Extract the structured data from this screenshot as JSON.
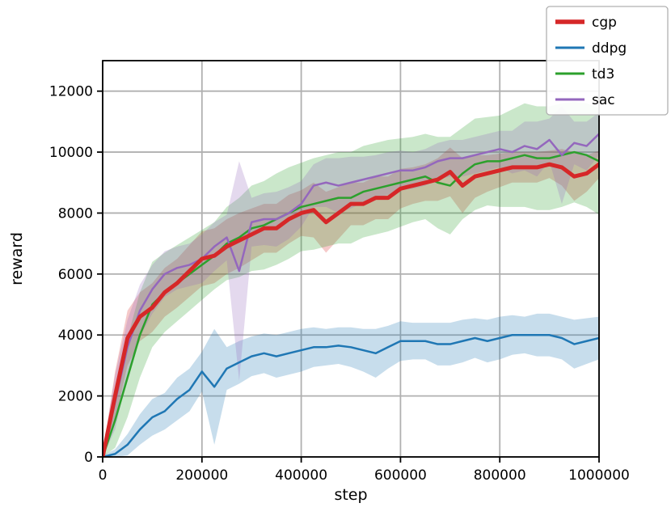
{
  "figure": {
    "background": "#ffffff"
  },
  "chart_data": {
    "type": "line",
    "title": "",
    "xlabel": "step",
    "ylabel": "reward",
    "xlim": [
      0,
      1000000
    ],
    "ylim": [
      0,
      13000
    ],
    "xticks": [
      0,
      200000,
      400000,
      600000,
      800000,
      1000000
    ],
    "xtick_labels": [
      "0",
      "200000",
      "400000",
      "600000",
      "800000",
      "1000000"
    ],
    "yticks": [
      0,
      2000,
      4000,
      6000,
      8000,
      10000,
      12000
    ],
    "ytick_labels": [
      "0",
      "2000",
      "4000",
      "6000",
      "8000",
      "10000",
      "12000"
    ],
    "grid": true,
    "grid_color": "#b0b0b0",
    "axis_color": "#000000",
    "band_opacity": 0.25,
    "legend": {
      "position": "upper right",
      "border_color": "#b0b0b0",
      "background": "#ffffff",
      "entries": [
        "cgp",
        "ddpg",
        "td3",
        "sac"
      ]
    },
    "x": [
      0,
      25000,
      50000,
      75000,
      100000,
      125000,
      150000,
      175000,
      200000,
      225000,
      250000,
      275000,
      300000,
      325000,
      350000,
      375000,
      400000,
      425000,
      450000,
      475000,
      500000,
      525000,
      550000,
      575000,
      600000,
      625000,
      650000,
      675000,
      700000,
      725000,
      750000,
      775000,
      800000,
      825000,
      850000,
      875000,
      900000,
      925000,
      950000,
      975000,
      1000000
    ],
    "series": [
      {
        "name": "cgp",
        "color": "#d62728",
        "linewidth": 5,
        "values": [
          0,
          2000,
          3900,
          4600,
          4900,
          5400,
          5700,
          6100,
          6500,
          6600,
          6900,
          7100,
          7300,
          7500,
          7500,
          7800,
          8000,
          8100,
          7700,
          8000,
          8300,
          8300,
          8500,
          8500,
          8800,
          8900,
          9000,
          9100,
          9350,
          8900,
          9200,
          9300,
          9400,
          9500,
          9500,
          9500,
          9600,
          9500,
          9200,
          9300,
          9600
        ],
        "band": [
          100,
          800,
          900,
          800,
          800,
          800,
          800,
          850,
          900,
          900,
          900,
          900,
          850,
          800,
          800,
          800,
          750,
          900,
          1000,
          850,
          700,
          700,
          700,
          700,
          650,
          600,
          600,
          700,
          800,
          900,
          700,
          600,
          550,
          500,
          500,
          500,
          450,
          600,
          800,
          600,
          450
        ]
      },
      {
        "name": "ddpg",
        "color": "#1f77b4",
        "linewidth": 2.5,
        "values": [
          0,
          100,
          400,
          900,
          1300,
          1500,
          1900,
          2200,
          2800,
          2300,
          2900,
          3100,
          3300,
          3400,
          3300,
          3400,
          3500,
          3600,
          3600,
          3650,
          3600,
          3500,
          3400,
          3600,
          3800,
          3800,
          3800,
          3700,
          3700,
          3800,
          3900,
          3800,
          3900,
          4000,
          4000,
          4000,
          4000,
          3900,
          3700,
          3800,
          3900
        ],
        "band": [
          50,
          150,
          350,
          500,
          600,
          600,
          700,
          700,
          650,
          1900,
          700,
          700,
          650,
          650,
          700,
          700,
          700,
          650,
          600,
          600,
          650,
          700,
          800,
          700,
          650,
          600,
          600,
          700,
          700,
          700,
          650,
          700,
          700,
          650,
          600,
          700,
          700,
          700,
          800,
          750,
          700
        ]
      },
      {
        "name": "td3",
        "color": "#2ca02c",
        "linewidth": 2.5,
        "values": [
          0,
          1200,
          2600,
          4000,
          5000,
          5400,
          5700,
          6000,
          6300,
          6600,
          7000,
          7200,
          7500,
          7600,
          7800,
          8000,
          8200,
          8300,
          8400,
          8500,
          8500,
          8700,
          8800,
          8900,
          9000,
          9100,
          9200,
          9000,
          8900,
          9300,
          9600,
          9700,
          9700,
          9800,
          9900,
          9800,
          9800,
          9900,
          10000,
          9900,
          9700
        ],
        "band": [
          100,
          900,
          1300,
          1400,
          1400,
          1300,
          1250,
          1200,
          1150,
          1100,
          1200,
          1300,
          1400,
          1450,
          1500,
          1500,
          1450,
          1500,
          1500,
          1500,
          1500,
          1500,
          1500,
          1500,
          1450,
          1400,
          1400,
          1500,
          1600,
          1500,
          1500,
          1450,
          1500,
          1600,
          1700,
          1700,
          1700,
          1700,
          1650,
          1700,
          1750
        ]
      },
      {
        "name": "sac",
        "color": "#9467bd",
        "linewidth": 2.5,
        "values": [
          0,
          1800,
          3600,
          4800,
          5500,
          6000,
          6200,
          6300,
          6500,
          6900,
          7200,
          6100,
          7700,
          7800,
          7800,
          8000,
          8300,
          8900,
          9000,
          8900,
          9000,
          9100,
          9200,
          9300,
          9400,
          9400,
          9500,
          9700,
          9800,
          9800,
          9900,
          10000,
          10100,
          10000,
          10200,
          10100,
          10400,
          9900,
          10300,
          10200,
          10600
        ],
        "band": [
          100,
          900,
          900,
          850,
          800,
          750,
          700,
          700,
          800,
          800,
          750,
          3600,
          800,
          850,
          900,
          850,
          750,
          700,
          800,
          900,
          850,
          750,
          700,
          700,
          650,
          600,
          600,
          600,
          600,
          600,
          600,
          600,
          600,
          700,
          800,
          900,
          700,
          1600,
          700,
          800,
          700
        ]
      }
    ]
  }
}
